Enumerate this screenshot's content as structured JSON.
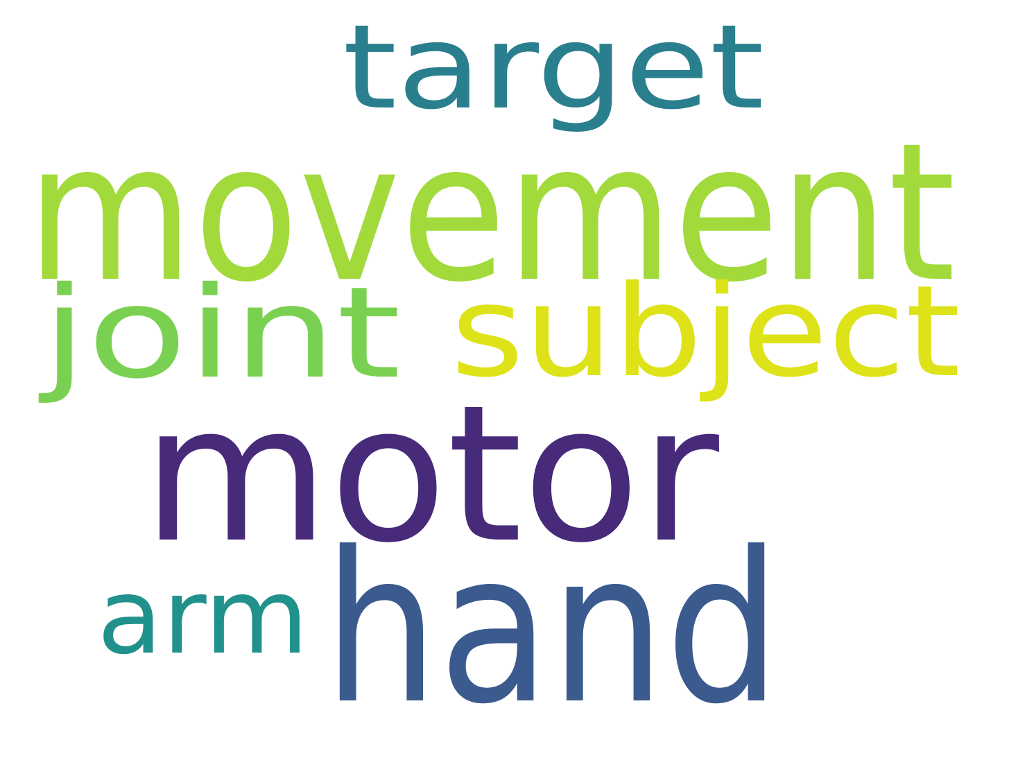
{
  "words": [
    {
      "text": "target",
      "color": "#2a7f8e"
    },
    {
      "text": "movement",
      "color": "#a2da3c"
    },
    {
      "text": "joint",
      "color": "#7ad151"
    },
    {
      "text": "subject",
      "color": "#dde318"
    },
    {
      "text": "motor",
      "color": "#472a7a"
    },
    {
      "text": "arm",
      "color": "#21918c"
    },
    {
      "text": "hand",
      "color": "#3b5a8e"
    }
  ]
}
